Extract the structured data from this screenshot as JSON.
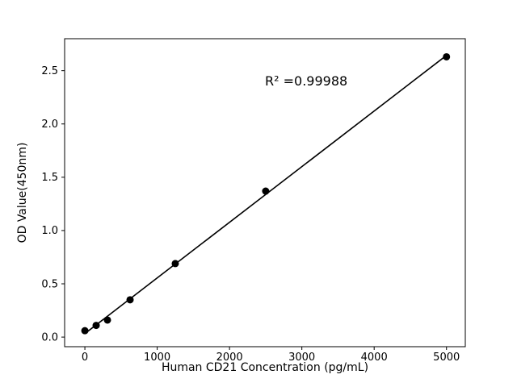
{
  "figure": {
    "background": "#ffffff"
  },
  "chart_data": {
    "type": "scatter",
    "title": "",
    "xlabel": "Human CD21 Concentration (pg/mL)",
    "ylabel": "OD Value(450nm)",
    "annotation": "R² =0.99988",
    "marker_color": "#000000",
    "line_color": "#000000",
    "axis_color": "#000000",
    "grid": false,
    "legend": "none",
    "xlim": [
      -280,
      5260
    ],
    "ylim": [
      -0.09,
      2.8
    ],
    "xtick_values": [
      0,
      1000,
      2000,
      3000,
      4000,
      5000
    ],
    "xtick_labels": [
      "0",
      "1000",
      "2000",
      "3000",
      "4000",
      "5000"
    ],
    "ytick_values": [
      0.0,
      0.5,
      1.0,
      1.5,
      2.0,
      2.5
    ],
    "ytick_labels": [
      "0.0",
      "0.5",
      "1.0",
      "1.5",
      "2.0",
      "2.5"
    ],
    "points": [
      {
        "x": 0,
        "y": 0.06
      },
      {
        "x": 156,
        "y": 0.11
      },
      {
        "x": 312,
        "y": 0.16
      },
      {
        "x": 625,
        "y": 0.35
      },
      {
        "x": 1250,
        "y": 0.69
      },
      {
        "x": 2500,
        "y": 1.37
      },
      {
        "x": 5000,
        "y": 2.63
      }
    ],
    "fit_line": {
      "x_start": 0,
      "x_end": 5000
    }
  }
}
